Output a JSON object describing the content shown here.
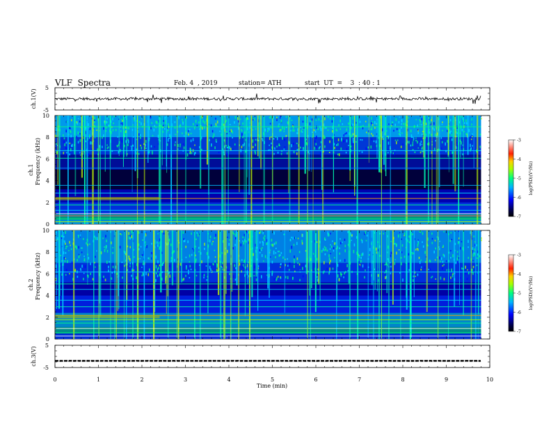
{
  "header": {
    "title": "VLF  Spectra",
    "date": "Feb. 4  , 2019",
    "station": "station= ATH",
    "start": "start  UT  =    3  : 40 : 1"
  },
  "chart_data": [
    {
      "type": "line",
      "panel": "ch1-waveform",
      "ylabel": "ch.1(V)",
      "yticks": [
        "5",
        "-5"
      ],
      "ylim": [
        -5,
        5
      ],
      "xlim": [
        0,
        10
      ],
      "x_end": 9.8,
      "baseline": 0.0,
      "color": "#000000"
    },
    {
      "type": "heatmap",
      "panel": "ch1-spectrogram",
      "ylabel_top": "ch.1",
      "ylabel": "Frequency (kHz)",
      "yticks": [
        "0",
        "2",
        "4",
        "6",
        "8",
        "10"
      ],
      "ylim": [
        0,
        10
      ],
      "xlim": [
        0,
        10
      ],
      "colorbar": {
        "label": "log(PSD)(V²/Hz)",
        "ticks": [
          "-3",
          "-4",
          "-5",
          "-6",
          "-7"
        ],
        "range": [
          -7,
          -3
        ]
      }
    },
    {
      "type": "heatmap",
      "panel": "ch2-spectrogram",
      "ylabel_top": "ch.2",
      "ylabel": "Frequency (kHz)",
      "yticks": [
        "0",
        "2",
        "4",
        "6",
        "8",
        "10"
      ],
      "ylim": [
        0,
        10
      ],
      "xlim": [
        0,
        10
      ],
      "colorbar": {
        "label": "log(PSD)(V²/Hz)",
        "ticks": [
          "-3",
          "-4",
          "-5",
          "-6",
          "-7"
        ],
        "range": [
          -7,
          -3
        ]
      }
    },
    {
      "type": "line",
      "panel": "ch3-waveform",
      "ylabel": "ch.3(V)",
      "yticks": [
        "5",
        "-5"
      ],
      "ylim": [
        -5,
        5
      ],
      "xlim": [
        0,
        10
      ],
      "x_end": 9.8,
      "baseline": -2.0,
      "color": "#000000"
    }
  ],
  "x_axis": {
    "label": "Time  (min)",
    "ticks": [
      "0",
      "1",
      "2",
      "3",
      "4",
      "5",
      "6",
      "7",
      "8",
      "9",
      "10"
    ]
  }
}
